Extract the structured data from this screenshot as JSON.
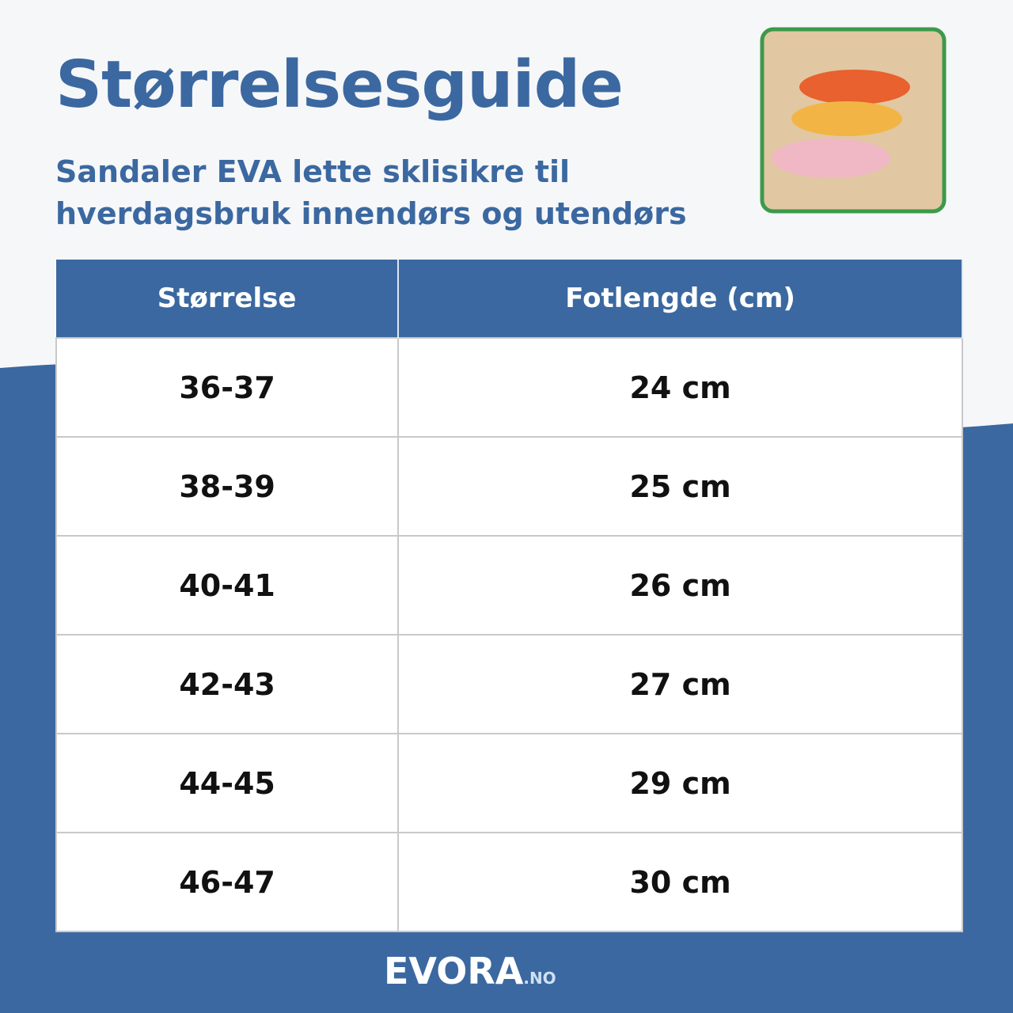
{
  "header": {
    "title": "Størrelsesguide",
    "subtitle_line1": "Sandaler EVA lette sklisikre til",
    "subtitle_line2": "hverdagsbruk innendørs og utendørs"
  },
  "table": {
    "columns": [
      "Størrelse",
      "Fotlengde (cm)"
    ],
    "rows": [
      [
        "36-37",
        "24 cm"
      ],
      [
        "38-39",
        "25 cm"
      ],
      [
        "40-41",
        "26 cm"
      ],
      [
        "42-43",
        "27 cm"
      ],
      [
        "44-45",
        "29 cm"
      ],
      [
        "46-47",
        "30 cm"
      ]
    ]
  },
  "footer": {
    "brand": "EVORA",
    "domain": ".NO"
  }
}
